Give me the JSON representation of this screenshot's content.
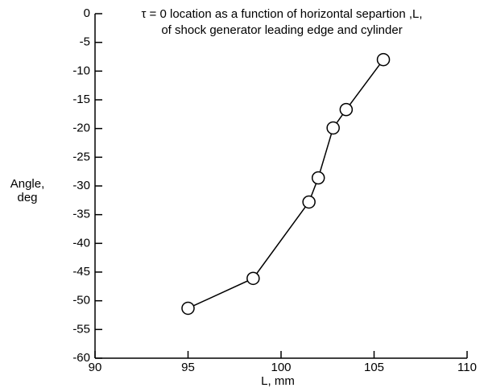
{
  "chart_data": {
    "type": "line",
    "title": [
      "τ = 0  location as a function of horizontal separtion ,L,",
      "of shock generator leading edge  and cylinder"
    ],
    "xlabel": "L, mm",
    "ylabel": [
      "Angle,",
      "deg"
    ],
    "series": [
      {
        "color": "#000000",
        "x": [
          95,
          98.5,
          101.5,
          102.0,
          102.8,
          103.5,
          105.5
        ],
        "values": [
          -51.3,
          -46.1,
          -32.8,
          -28.6,
          -19.9,
          -16.7,
          -8.0
        ]
      }
    ],
    "xlim": [
      90,
      110
    ],
    "xticks": [
      90,
      95,
      100,
      105,
      110
    ],
    "ylim": [
      -60,
      0
    ],
    "yticks": [
      0,
      -5,
      -10,
      -15,
      -20,
      -25,
      -30,
      -35,
      -40,
      -45,
      -50,
      -55,
      -60
    ],
    "grid": false
  }
}
